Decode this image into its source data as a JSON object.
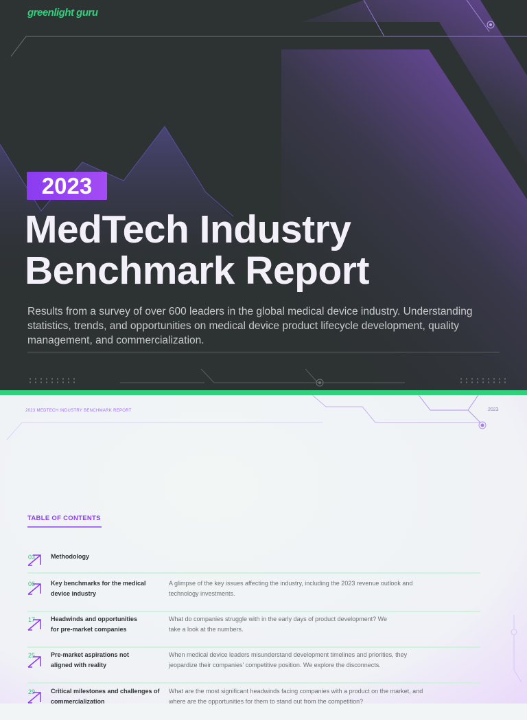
{
  "cover": {
    "logo": "greenlight guru",
    "year": "2023",
    "title_line1": "MedTech Industry",
    "title_line2": "Benchmark Report",
    "subtitle": "Results from a survey of over 600 leaders in the global medical device industry. Understanding statistics, trends, and opportunities on medical device product lifecycle development, quality management, and commercialization."
  },
  "colors": {
    "accent_purple": "#8a3cf0",
    "accent_green": "#2fd27a",
    "dark_bg": "#2d3233"
  },
  "page": {
    "running_head": "2023 MEDTECH INDUSTRY BENCHMARK REPORT",
    "running_year": "2023",
    "toc_heading": "TABLE OF CONTENTS",
    "toc": [
      {
        "page": "03",
        "title": "Methodology",
        "description": ""
      },
      {
        "page": "06",
        "title": "Key benchmarks for the medical device industry",
        "description": "A glimpse of the key issues affecting the industry, including the 2023 revenue outlook and technology investments."
      },
      {
        "page": "17",
        "title": "Headwinds and opportunities for pre-market companies",
        "description": "What do companies struggle with in the early days of product development? We take a look at the numbers."
      },
      {
        "page": "25",
        "title": "Pre-market aspirations not aligned with reality",
        "description": "When medical device leaders misunderstand development timelines and priorities, they jeopardize their companies' competitive position. We explore the disconnects."
      },
      {
        "page": "29",
        "title": "Critical milestones and challenges of commercialization",
        "description": "What are the most significant headwinds facing companies with a product on the market, and where are the opportunities for them to stand out from the competition?"
      }
    ],
    "arrow_icon": "arrow-up-right-icon"
  }
}
